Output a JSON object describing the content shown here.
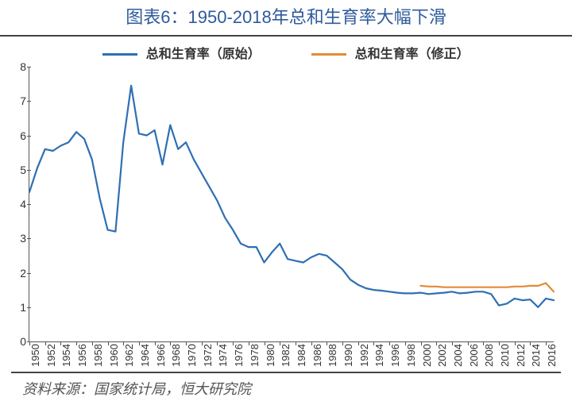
{
  "title": "图表6：1950-2018年总和生育率大幅下滑",
  "title_color": "#2f5b9c",
  "legend": {
    "series1": {
      "label": "总和生育率（原始）",
      "color": "#2f6fb3"
    },
    "series2": {
      "label": "总和生育率（修正）",
      "color": "#e28b36"
    }
  },
  "source": "资料来源：国家统计局，恒大研究院",
  "chart": {
    "type": "line",
    "x": {
      "min": 1950,
      "max": 2017,
      "tick_step": 2,
      "label_rotation": -90,
      "fontsize": 13
    },
    "y": {
      "min": 0,
      "max": 8,
      "tick_step": 1,
      "fontsize": 14
    },
    "line_width": 2.2,
    "background_color": "#ffffff",
    "axis_color": "#555555",
    "series": [
      {
        "name": "original",
        "color": "#2f6fb3",
        "years": [
          1950,
          1951,
          1952,
          1953,
          1954,
          1955,
          1956,
          1957,
          1958,
          1959,
          1960,
          1961,
          1962,
          1963,
          1964,
          1965,
          1966,
          1967,
          1968,
          1969,
          1970,
          1971,
          1972,
          1973,
          1974,
          1975,
          1976,
          1977,
          1978,
          1979,
          1980,
          1981,
          1982,
          1983,
          1984,
          1985,
          1986,
          1987,
          1988,
          1989,
          1990,
          1991,
          1992,
          1993,
          1994,
          1995,
          1996,
          1997,
          1998,
          1999,
          2000,
          2001,
          2002,
          2003,
          2004,
          2005,
          2006,
          2007,
          2008,
          2009,
          2010,
          2011,
          2012,
          2013,
          2014,
          2015,
          2016,
          2017
        ],
        "values": [
          4.35,
          5.05,
          5.6,
          5.55,
          5.7,
          5.8,
          6.1,
          5.9,
          5.3,
          4.15,
          3.25,
          3.2,
          5.8,
          7.45,
          6.05,
          6.0,
          6.15,
          5.15,
          6.3,
          5.6,
          5.8,
          5.3,
          4.9,
          4.5,
          4.1,
          3.6,
          3.25,
          2.85,
          2.75,
          2.75,
          2.3,
          2.6,
          2.85,
          2.4,
          2.35,
          2.3,
          2.45,
          2.55,
          2.5,
          2.3,
          2.1,
          1.8,
          1.65,
          1.55,
          1.5,
          1.48,
          1.45,
          1.42,
          1.4,
          1.4,
          1.42,
          1.38,
          1.4,
          1.42,
          1.45,
          1.4,
          1.42,
          1.45,
          1.45,
          1.38,
          1.05,
          1.1,
          1.25,
          1.2,
          1.22,
          1.0,
          1.25,
          1.2
        ]
      },
      {
        "name": "adjusted",
        "color": "#e28b36",
        "years": [
          2000,
          2001,
          2002,
          2003,
          2004,
          2005,
          2006,
          2007,
          2008,
          2009,
          2010,
          2011,
          2012,
          2013,
          2014,
          2015,
          2016,
          2017
        ],
        "values": [
          1.62,
          1.6,
          1.6,
          1.58,
          1.58,
          1.58,
          1.58,
          1.58,
          1.58,
          1.58,
          1.58,
          1.58,
          1.6,
          1.6,
          1.62,
          1.62,
          1.7,
          1.45
        ]
      }
    ]
  }
}
